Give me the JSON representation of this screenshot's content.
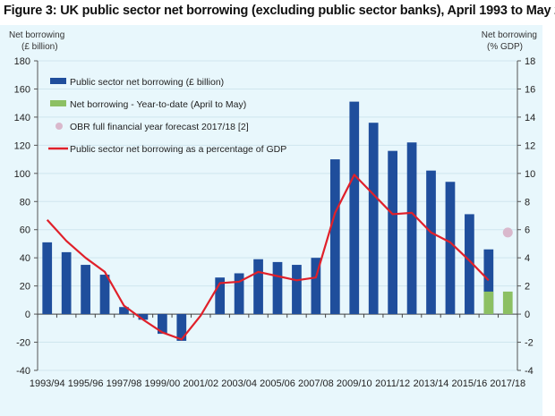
{
  "title": "Figure 3: UK public sector net borrowing (excluding public sector banks), April 1993 to May 2017",
  "chart_data": {
    "type": "bar",
    "title": "Figure 3: UK public sector net borrowing (excluding public sector banks), April 1993 to May 2017",
    "ylabel_left": [
      "Net borrowing",
      "(£ billion)"
    ],
    "ylabel_right": [
      "Net borrowing",
      "(% GDP)"
    ],
    "ylim_left": [
      -40,
      180
    ],
    "ylim_right": [
      -4,
      18
    ],
    "yticks_left": [
      -40,
      -20,
      0,
      20,
      40,
      60,
      80,
      100,
      120,
      140,
      160,
      180
    ],
    "yticks_right": [
      -4,
      -2,
      0,
      2,
      4,
      6,
      8,
      10,
      12,
      14,
      16,
      18
    ],
    "grid": true,
    "legend_placement": "top-left",
    "categories": [
      "1993/94",
      "1994/95",
      "1995/96",
      "1996/97",
      "1997/98",
      "1998/99",
      "1999/00",
      "2000/01",
      "2001/02",
      "2002/03",
      "2003/04",
      "2004/05",
      "2005/06",
      "2006/07",
      "2007/08",
      "2008/09",
      "2009/10",
      "2010/11",
      "2011/12",
      "2012/13",
      "2013/14",
      "2014/15",
      "2015/16",
      "2016/17",
      "2017/18"
    ],
    "xtick_labels": [
      "1993/94",
      "1995/96",
      "1997/98",
      "1999/00",
      "2001/02",
      "2003/04",
      "2005/06",
      "2007/08",
      "2009/10",
      "2011/12",
      "2013/14",
      "2015/16",
      "2017/18"
    ],
    "series": [
      {
        "name": "Public sector net borrowing (£ billion)",
        "type": "bar",
        "axis": "left",
        "color": "#1f4e9c",
        "values": [
          51,
          44,
          35,
          28,
          5,
          -4,
          -14,
          -19,
          0,
          26,
          29,
          39,
          37,
          35,
          40,
          110,
          151,
          136,
          116,
          122,
          102,
          94,
          71,
          46,
          null
        ]
      },
      {
        "name": "Net borrowing - Year-to-date (April to May)",
        "type": "bar",
        "axis": "left",
        "color": "#8cc063",
        "values": [
          null,
          null,
          null,
          null,
          null,
          null,
          null,
          null,
          null,
          null,
          null,
          null,
          null,
          null,
          null,
          null,
          null,
          null,
          null,
          null,
          null,
          null,
          null,
          16,
          16
        ]
      },
      {
        "name": "OBR full financial year forecast 2017/18 [2]",
        "type": "scatter",
        "axis": "right",
        "color": "#d9b8cc",
        "points": [
          {
            "x": "2017/18",
            "y": 5.8
          }
        ]
      },
      {
        "name": "Public sector net borrowing as a percentage of GDP",
        "type": "line",
        "axis": "right",
        "color": "#e0202a",
        "values": [
          6.7,
          5.2,
          4.0,
          3.0,
          0.6,
          -0.4,
          -1.3,
          -1.8,
          -0.1,
          2.2,
          2.3,
          3.0,
          2.7,
          2.4,
          2.6,
          7.2,
          9.9,
          8.5,
          7.1,
          7.2,
          5.8,
          5.1,
          3.8,
          2.4,
          null
        ]
      }
    ]
  }
}
